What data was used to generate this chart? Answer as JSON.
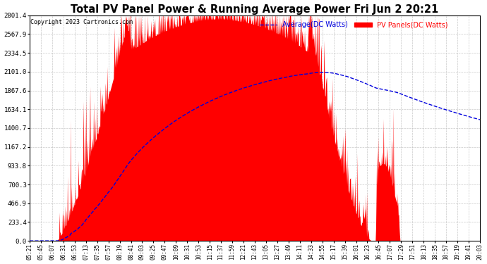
{
  "title": "Total PV Panel Power & Running Average Power Fri Jun 2 20:21",
  "copyright": "Copyright 2023 Cartronics.com",
  "legend_avg": "Average(DC Watts)",
  "legend_pv": "PV Panels(DC Watts)",
  "ymax": 2801.4,
  "ymin": 0.0,
  "yticks": [
    0.0,
    233.4,
    466.9,
    700.3,
    933.8,
    1167.2,
    1400.7,
    1634.1,
    1867.6,
    2101.0,
    2334.5,
    2567.9,
    2801.4
  ],
  "xtick_labels": [
    "05:21",
    "05:45",
    "06:07",
    "06:31",
    "06:53",
    "07:13",
    "07:35",
    "07:57",
    "08:19",
    "08:41",
    "09:03",
    "09:25",
    "09:47",
    "10:09",
    "10:31",
    "10:53",
    "11:15",
    "11:37",
    "11:59",
    "12:21",
    "12:43",
    "13:05",
    "13:27",
    "13:49",
    "14:11",
    "14:33",
    "14:55",
    "15:17",
    "15:39",
    "16:01",
    "16:23",
    "16:45",
    "17:07",
    "17:29",
    "17:51",
    "18:13",
    "18:35",
    "18:57",
    "19:19",
    "19:41",
    "20:03"
  ],
  "pv_color": "#FF0000",
  "avg_color": "#0000DD",
  "background_color": "#FFFFFF",
  "grid_color": "#BBBBBB",
  "title_color": "#000000",
  "copyright_color": "#000000",
  "legend_avg_color": "#0000DD",
  "legend_pv_color": "#FF0000",
  "figwidth": 6.9,
  "figheight": 3.75,
  "dpi": 100
}
